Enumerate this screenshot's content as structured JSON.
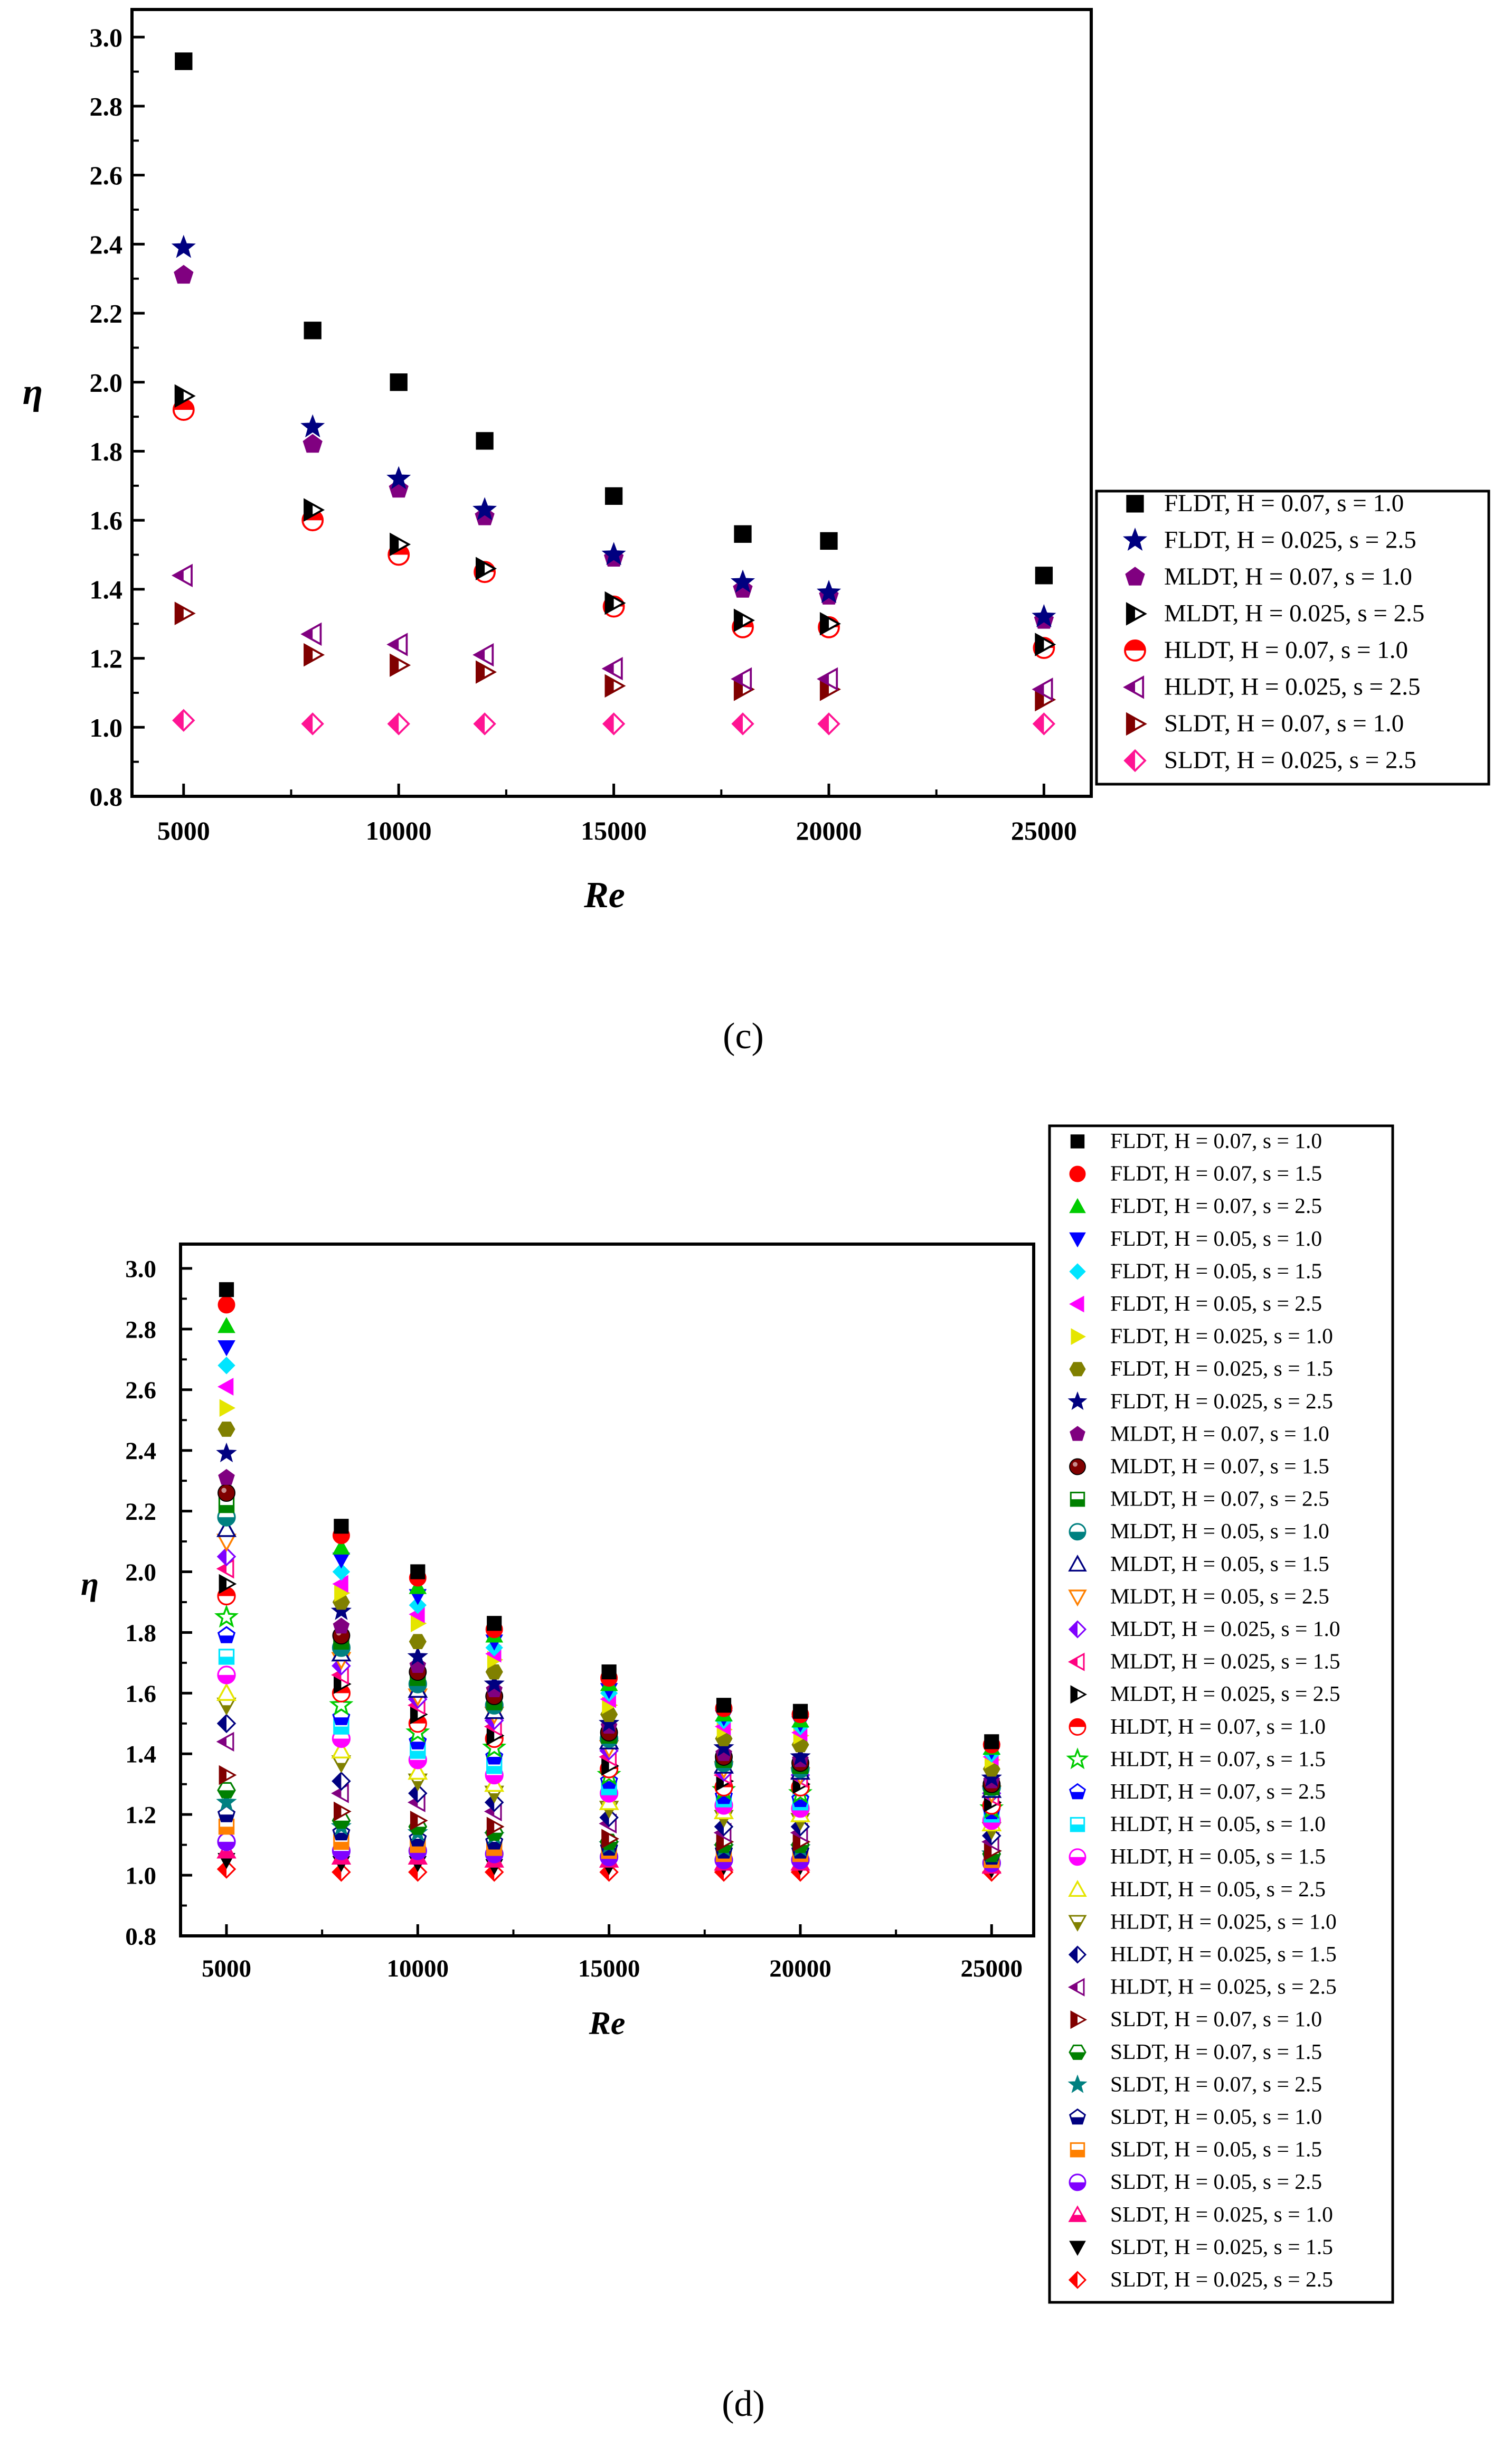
{
  "chart_data": [
    {
      "panel": "c",
      "type": "scatter",
      "caption": "(c)",
      "xlabel": "Re",
      "ylabel": "η",
      "xlim": [
        3800,
        26100
      ],
      "ylim": [
        0.8,
        3.08
      ],
      "xticks": [
        5000,
        10000,
        15000,
        20000,
        25000
      ],
      "yticks": [
        0.8,
        1.0,
        1.2,
        1.4,
        1.6,
        1.8,
        2.0,
        2.2,
        2.4,
        2.6,
        2.8,
        3.0
      ],
      "ytick_labels": [
        "0.8",
        "1.0",
        "1.2",
        "1.4",
        "1.6",
        "1.8",
        "2.0",
        "2.2",
        "2.4",
        "2.6",
        "2.8",
        "3.0"
      ],
      "legend_position": "right",
      "x": [
        5000,
        8000,
        10000,
        12000,
        15000,
        18000,
        20000,
        25000
      ],
      "series": [
        {
          "name": "FLDT, H = 0.07, s = 1.0",
          "marker": "square",
          "color": "#000000",
          "values": [
            2.93,
            2.15,
            2.0,
            1.83,
            1.67,
            1.56,
            1.54,
            1.44
          ]
        },
        {
          "name": "FLDT, H = 0.025, s = 2.5",
          "marker": "star",
          "color": "#000080",
          "values": [
            2.39,
            1.87,
            1.72,
            1.63,
            1.5,
            1.42,
            1.39,
            1.32
          ]
        },
        {
          "name": "MLDT, H = 0.07, s = 1.0",
          "marker": "pentagon",
          "color": "#800080",
          "values": [
            2.31,
            1.82,
            1.69,
            1.61,
            1.49,
            1.4,
            1.38,
            1.31
          ]
        },
        {
          "name": "MLDT, H = 0.025, s = 2.5",
          "marker": "tri-right-half",
          "color": "#000000",
          "values": [
            1.96,
            1.63,
            1.53,
            1.46,
            1.36,
            1.31,
            1.3,
            1.24
          ]
        },
        {
          "name": "HLDT, H = 0.07, s = 1.0",
          "marker": "circle-half-top",
          "color": "#ff0000",
          "values": [
            1.92,
            1.6,
            1.5,
            1.45,
            1.35,
            1.29,
            1.29,
            1.23
          ]
        },
        {
          "name": "HLDT, H = 0.025, s = 2.5",
          "marker": "tri-left-half",
          "color": "#800080",
          "values": [
            1.44,
            1.27,
            1.24,
            1.21,
            1.17,
            1.14,
            1.14,
            1.11
          ]
        },
        {
          "name": "SLDT, H = 0.07, s = 1.0",
          "marker": "tri-right-half",
          "color": "#800000",
          "values": [
            1.33,
            1.21,
            1.18,
            1.16,
            1.12,
            1.11,
            1.11,
            1.08
          ]
        },
        {
          "name": "SLDT, H = 0.025, s = 2.5",
          "marker": "diamond-half",
          "color": "#ff1493",
          "values": [
            1.02,
            1.01,
            1.01,
            1.01,
            1.01,
            1.01,
            1.01,
            1.01
          ]
        }
      ]
    },
    {
      "panel": "d",
      "type": "scatter",
      "caption": "(d)",
      "xlabel": "Re",
      "ylabel": "η",
      "xlim": [
        3800,
        26100
      ],
      "ylim": [
        0.8,
        3.08
      ],
      "xticks": [
        5000,
        10000,
        15000,
        20000,
        25000
      ],
      "yticks": [
        0.8,
        1.0,
        1.2,
        1.4,
        1.6,
        1.8,
        2.0,
        2.2,
        2.4,
        2.6,
        2.8,
        3.0
      ],
      "ytick_labels": [
        "0.8",
        "1.0",
        "1.2",
        "1.4",
        "1.6",
        "1.8",
        "2.0",
        "2.2",
        "2.4",
        "2.6",
        "2.8",
        "3.0"
      ],
      "legend_position": "right",
      "x": [
        5000,
        8000,
        10000,
        12000,
        15000,
        18000,
        20000,
        25000
      ],
      "series": [
        {
          "name": "FLDT, H = 0.07, s = 1.0",
          "marker": "square",
          "color": "#000000",
          "values": [
            2.93,
            2.15,
            2.0,
            1.83,
            1.67,
            1.56,
            1.54,
            1.44
          ]
        },
        {
          "name": "FLDT, H = 0.07, s = 1.5",
          "marker": "circle",
          "color": "#ff0000",
          "values": [
            2.88,
            2.12,
            1.98,
            1.81,
            1.65,
            1.55,
            1.53,
            1.43
          ]
        },
        {
          "name": "FLDT, H = 0.07, s = 2.5",
          "marker": "tri-up",
          "color": "#00cc00",
          "values": [
            2.81,
            2.08,
            1.95,
            1.79,
            1.63,
            1.53,
            1.51,
            1.42
          ]
        },
        {
          "name": "FLDT, H = 0.05, s = 1.0",
          "marker": "tri-down",
          "color": "#0000ff",
          "values": [
            2.74,
            2.04,
            1.92,
            1.77,
            1.61,
            1.52,
            1.5,
            1.41
          ]
        },
        {
          "name": "FLDT, H = 0.05, s = 1.5",
          "marker": "diamond",
          "color": "#00e5ff",
          "values": [
            2.68,
            2.0,
            1.89,
            1.75,
            1.6,
            1.51,
            1.49,
            1.4
          ]
        },
        {
          "name": "FLDT, H = 0.05, s = 2.5",
          "marker": "tri-left",
          "color": "#ff00ff",
          "values": [
            2.61,
            1.96,
            1.86,
            1.73,
            1.58,
            1.49,
            1.47,
            1.39
          ]
        },
        {
          "name": "FLDT, H = 0.025, s = 1.0",
          "marker": "tri-right",
          "color": "#e5e500",
          "values": [
            2.54,
            1.93,
            1.83,
            1.71,
            1.56,
            1.48,
            1.46,
            1.38
          ]
        },
        {
          "name": "FLDT, H = 0.025, s = 1.5",
          "marker": "hexagon",
          "color": "#808000",
          "values": [
            2.47,
            1.9,
            1.77,
            1.67,
            1.53,
            1.45,
            1.43,
            1.35
          ]
        },
        {
          "name": "FLDT, H = 0.025, s = 2.5",
          "marker": "star",
          "color": "#000080",
          "values": [
            2.39,
            1.87,
            1.72,
            1.63,
            1.5,
            1.42,
            1.39,
            1.32
          ]
        },
        {
          "name": "MLDT, H = 0.07, s = 1.0",
          "marker": "pentagon",
          "color": "#800080",
          "values": [
            2.31,
            1.82,
            1.69,
            1.61,
            1.49,
            1.4,
            1.38,
            1.31
          ]
        },
        {
          "name": "MLDT, H = 0.07, s = 1.5",
          "marker": "circle-shaded",
          "color": "#800000",
          "values": [
            2.26,
            1.79,
            1.67,
            1.59,
            1.47,
            1.39,
            1.37,
            1.3
          ]
        },
        {
          "name": "MLDT, H = 0.07, s = 2.5",
          "marker": "square-half",
          "color": "#008000",
          "values": [
            2.22,
            1.77,
            1.65,
            1.57,
            1.46,
            1.38,
            1.36,
            1.29
          ]
        },
        {
          "name": "MLDT, H = 0.05, s = 1.0",
          "marker": "circle-half",
          "color": "#008080",
          "values": [
            2.18,
            1.75,
            1.63,
            1.56,
            1.45,
            1.37,
            1.35,
            1.29
          ]
        },
        {
          "name": "MLDT, H = 0.05, s = 1.5",
          "marker": "tri-up-open",
          "color": "#000080",
          "values": [
            2.14,
            1.73,
            1.61,
            1.54,
            1.44,
            1.36,
            1.34,
            1.28
          ]
        },
        {
          "name": "MLDT, H = 0.05, s = 2.5",
          "marker": "tri-down-open",
          "color": "#ff8000",
          "values": [
            2.1,
            1.71,
            1.59,
            1.53,
            1.42,
            1.35,
            1.33,
            1.27
          ]
        },
        {
          "name": "MLDT, H = 0.025, s = 1.0",
          "marker": "diamond-half",
          "color": "#8000ff",
          "values": [
            2.05,
            1.69,
            1.58,
            1.51,
            1.41,
            1.34,
            1.33,
            1.27
          ]
        },
        {
          "name": "MLDT, H = 0.025, s = 1.5",
          "marker": "tri-left-half",
          "color": "#ff0080",
          "values": [
            2.01,
            1.66,
            1.56,
            1.49,
            1.39,
            1.33,
            1.32,
            1.26
          ]
        },
        {
          "name": "MLDT, H = 0.025, s = 2.5",
          "marker": "tri-right-half",
          "color": "#000000",
          "values": [
            1.96,
            1.63,
            1.53,
            1.46,
            1.36,
            1.31,
            1.3,
            1.24
          ]
        },
        {
          "name": "HLDT, H = 0.07, s = 1.0",
          "marker": "circle-half-top",
          "color": "#ff0000",
          "values": [
            1.92,
            1.6,
            1.5,
            1.45,
            1.35,
            1.29,
            1.29,
            1.23
          ]
        },
        {
          "name": "HLDT, H = 0.07, s = 1.5",
          "marker": "star-open",
          "color": "#00cc00",
          "values": [
            1.85,
            1.56,
            1.47,
            1.42,
            1.33,
            1.28,
            1.27,
            1.22
          ]
        },
        {
          "name": "HLDT, H = 0.07, s = 2.5",
          "marker": "pentagon-half",
          "color": "#0000ff",
          "values": [
            1.79,
            1.52,
            1.44,
            1.39,
            1.31,
            1.26,
            1.25,
            1.21
          ]
        },
        {
          "name": "HLDT, H = 0.05, s = 1.0",
          "marker": "square-half",
          "color": "#00e5ff",
          "values": [
            1.72,
            1.49,
            1.41,
            1.36,
            1.29,
            1.25,
            1.24,
            1.2
          ]
        },
        {
          "name": "HLDT, H = 0.05, s = 1.5",
          "marker": "circle-half",
          "color": "#ff00ff",
          "values": [
            1.66,
            1.45,
            1.38,
            1.33,
            1.27,
            1.23,
            1.22,
            1.18
          ]
        },
        {
          "name": "HLDT, H = 0.05, s = 2.5",
          "marker": "tri-up-open",
          "color": "#e5e500",
          "values": [
            1.6,
            1.41,
            1.34,
            1.3,
            1.24,
            1.21,
            1.2,
            1.17
          ]
        },
        {
          "name": "HLDT, H = 0.025, s = 1.0",
          "marker": "tri-down-half",
          "color": "#808000",
          "values": [
            1.56,
            1.37,
            1.31,
            1.27,
            1.22,
            1.19,
            1.18,
            1.15
          ]
        },
        {
          "name": "HLDT, H = 0.025, s = 1.5",
          "marker": "diamond-half",
          "color": "#000080",
          "values": [
            1.5,
            1.31,
            1.27,
            1.24,
            1.19,
            1.16,
            1.16,
            1.13
          ]
        },
        {
          "name": "HLDT, H = 0.025, s = 2.5",
          "marker": "tri-left-half",
          "color": "#800080",
          "values": [
            1.44,
            1.27,
            1.24,
            1.21,
            1.17,
            1.14,
            1.14,
            1.11
          ]
        },
        {
          "name": "SLDT, H = 0.07, s = 1.0",
          "marker": "tri-right-half",
          "color": "#800000",
          "values": [
            1.33,
            1.21,
            1.18,
            1.16,
            1.12,
            1.11,
            1.11,
            1.08
          ]
        },
        {
          "name": "SLDT, H = 0.07, s = 1.5",
          "marker": "hexagon-half",
          "color": "#008000",
          "values": [
            1.28,
            1.18,
            1.16,
            1.14,
            1.11,
            1.1,
            1.1,
            1.07
          ]
        },
        {
          "name": "SLDT, H = 0.07, s = 2.5",
          "marker": "star",
          "color": "#008080",
          "values": [
            1.24,
            1.16,
            1.14,
            1.13,
            1.1,
            1.09,
            1.09,
            1.07
          ]
        },
        {
          "name": "SLDT, H = 0.05, s = 1.0",
          "marker": "pentagon-half",
          "color": "#000080",
          "values": [
            1.2,
            1.14,
            1.12,
            1.11,
            1.09,
            1.08,
            1.08,
            1.06
          ]
        },
        {
          "name": "SLDT, H = 0.05, s = 1.5",
          "marker": "square-half",
          "color": "#ff8000",
          "values": [
            1.16,
            1.11,
            1.1,
            1.09,
            1.08,
            1.07,
            1.07,
            1.05
          ]
        },
        {
          "name": "SLDT, H = 0.05, s = 2.5",
          "marker": "circle-half",
          "color": "#8000ff",
          "values": [
            1.11,
            1.08,
            1.08,
            1.07,
            1.06,
            1.05,
            1.05,
            1.04
          ]
        },
        {
          "name": "SLDT, H = 0.025, s = 1.0",
          "marker": "tri-up-half",
          "color": "#ff0080",
          "values": [
            1.08,
            1.06,
            1.06,
            1.05,
            1.05,
            1.04,
            1.04,
            1.03
          ]
        },
        {
          "name": "SLDT, H = 0.025, s = 1.5",
          "marker": "tri-down",
          "color": "#000000",
          "values": [
            1.05,
            1.04,
            1.04,
            1.03,
            1.03,
            1.03,
            1.03,
            1.02
          ]
        },
        {
          "name": "SLDT, H = 0.025, s = 2.5",
          "marker": "diamond-half",
          "color": "#ff0000",
          "values": [
            1.02,
            1.01,
            1.01,
            1.01,
            1.01,
            1.01,
            1.01,
            1.01
          ]
        }
      ]
    }
  ]
}
